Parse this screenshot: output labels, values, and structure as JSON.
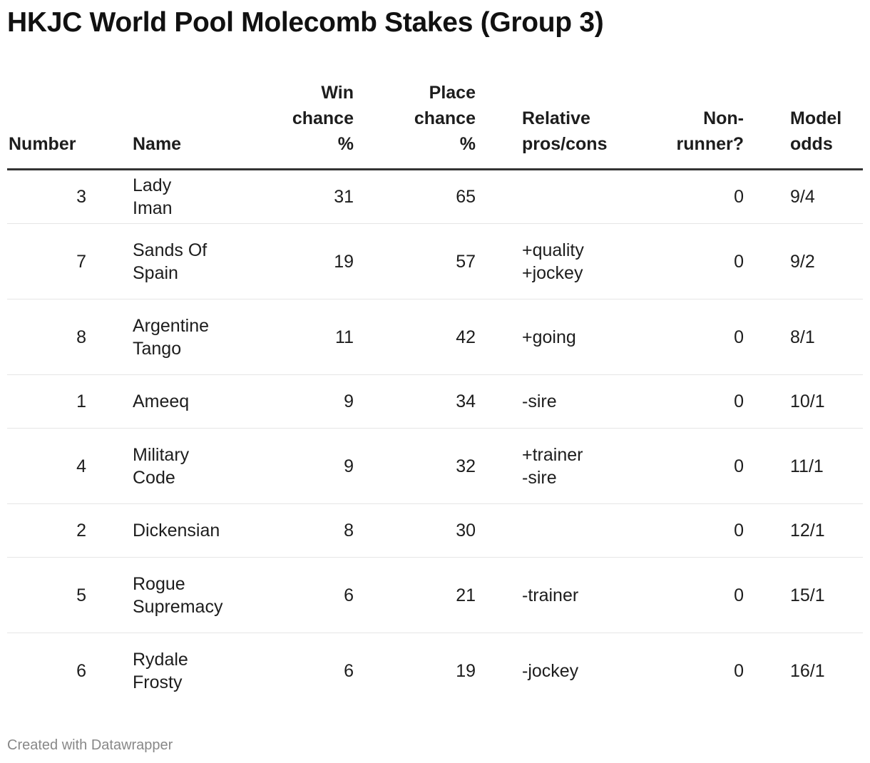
{
  "title": "HKJC World Pool Molecomb Stakes (Group 3)",
  "columns": [
    "Number",
    "Name",
    "Win chance %",
    "Place chance %",
    "Relative pros/cons",
    "Non-runner?",
    "Model odds"
  ],
  "rows": [
    {
      "number": "3",
      "name": "Lady Iman",
      "win": "31",
      "place": "65",
      "pros_cons": "",
      "non_runner": "0",
      "odds": "9/4"
    },
    {
      "number": "7",
      "name": "Sands Of Spain",
      "win": "19",
      "place": "57",
      "pros_cons": "+quality +jockey",
      "non_runner": "0",
      "odds": "9/2"
    },
    {
      "number": "8",
      "name": "Argentine Tango",
      "win": "11",
      "place": "42",
      "pros_cons": "+going",
      "non_runner": "0",
      "odds": "8/1"
    },
    {
      "number": "1",
      "name": "Ameeq",
      "win": "9",
      "place": "34",
      "pros_cons": "-sire",
      "non_runner": "0",
      "odds": "10/1"
    },
    {
      "number": "4",
      "name": "Military Code",
      "win": "9",
      "place": "32",
      "pros_cons": "+trainer -sire",
      "non_runner": "0",
      "odds": "11/1"
    },
    {
      "number": "2",
      "name": "Dickensian",
      "win": "8",
      "place": "30",
      "pros_cons": "",
      "non_runner": "0",
      "odds": "12/1"
    },
    {
      "number": "5",
      "name": "Rogue Supremacy",
      "win": "6",
      "place": "21",
      "pros_cons": "-trainer",
      "non_runner": "0",
      "odds": "15/1"
    },
    {
      "number": "6",
      "name": "Rydale Frosty",
      "win": "6",
      "place": "19",
      "pros_cons": "-jockey",
      "non_runner": "0",
      "odds": "16/1"
    }
  ],
  "footer": "Created with Datawrapper"
}
